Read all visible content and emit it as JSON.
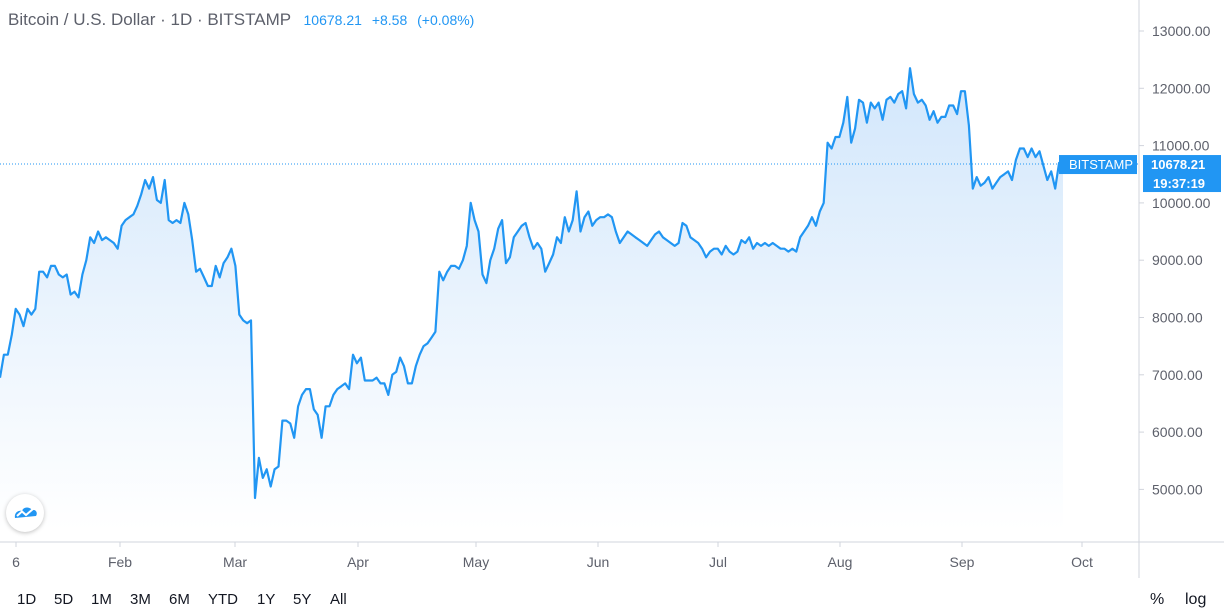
{
  "header": {
    "symbol": "Bitcoin / U.S. Dollar · 1D · BITSTAMP",
    "last": "10678.21",
    "change": "+8.58",
    "change_pct": "(+0.08%)"
  },
  "price_tag": {
    "label": "BITSTAMP",
    "value": "10678.21",
    "countdown": "19:37:19"
  },
  "ranges": [
    "1D",
    "5D",
    "1M",
    "3M",
    "6M",
    "YTD",
    "1Y",
    "5Y",
    "All"
  ],
  "scale_buttons": {
    "percent": "%",
    "log": "log"
  },
  "colors": {
    "line": "#2196f3",
    "fill_top": "#cfe5fb",
    "text": "#131722",
    "axis_text": "#5d606b"
  },
  "chart_data": {
    "type": "area",
    "title": "Bitcoin / U.S. Dollar · 1D · BITSTAMP",
    "x_tick_labels": [
      "6",
      "Feb",
      "Mar",
      "Apr",
      "May",
      "Jun",
      "Jul",
      "Aug",
      "Sep",
      "Oct"
    ],
    "y_tick_labels": [
      "13000.00",
      "12000.00",
      "11000.00",
      "10000.00",
      "9000.00",
      "8000.00",
      "7000.00",
      "6000.00",
      "5000.00"
    ],
    "ylim": [
      4000,
      13600
    ],
    "grid": false,
    "series": [
      {
        "values": [
          6950,
          7350,
          7350,
          7700,
          8150,
          8050,
          7850,
          8150,
          8050,
          8150,
          8800,
          8800,
          8700,
          8900,
          8900,
          8750,
          8700,
          8750,
          8400,
          8450,
          8350,
          8750,
          9000,
          9400,
          9300,
          9500,
          9350,
          9400,
          9350,
          9300,
          9200,
          9600,
          9700,
          9750,
          9800,
          9950,
          10150,
          10400,
          10250,
          10450,
          10050,
          10000,
          10400,
          9700,
          9650,
          9700,
          9650,
          10000,
          9800,
          9350,
          8800,
          8850,
          8700,
          8550,
          8550,
          8900,
          8700,
          8950,
          9050,
          9200,
          8900,
          8050,
          7950,
          7900,
          7950,
          4850,
          5550,
          5200,
          5350,
          5050,
          5350,
          5400,
          6200,
          6200,
          6150,
          5900,
          6450,
          6650,
          6750,
          6750,
          6400,
          6300,
          5900,
          6450,
          6450,
          6650,
          6750,
          6800,
          6850,
          6750,
          7350,
          7200,
          7300,
          6900,
          6900,
          6900,
          6950,
          6850,
          6850,
          6650,
          7000,
          7050,
          7300,
          7150,
          6850,
          6850,
          7150,
          7350,
          7500,
          7550,
          7650,
          7750,
          8800,
          8650,
          8800,
          8900,
          8900,
          8850,
          9000,
          9250,
          10000,
          9700,
          9500,
          8750,
          8600,
          9000,
          9200,
          9550,
          9700,
          8950,
          9050,
          9400,
          9500,
          9600,
          9650,
          9400,
          9200,
          9300,
          9200,
          8800,
          8950,
          9100,
          9400,
          9300,
          9750,
          9500,
          9700,
          10200,
          9500,
          9750,
          9850,
          9600,
          9700,
          9750,
          9750,
          9800,
          9750,
          9500,
          9300,
          9400,
          9500,
          9450,
          9400,
          9350,
          9300,
          9250,
          9350,
          9450,
          9500,
          9400,
          9350,
          9300,
          9250,
          9300,
          9650,
          9600,
          9400,
          9350,
          9300,
          9200,
          9050,
          9150,
          9200,
          9200,
          9100,
          9250,
          9150,
          9100,
          9150,
          9350,
          9300,
          9400,
          9200,
          9300,
          9250,
          9300,
          9250,
          9300,
          9250,
          9200,
          9200,
          9150,
          9200,
          9150,
          9400,
          9500,
          9600,
          9750,
          9600,
          9850,
          10000,
          11050,
          10950,
          11150,
          11150,
          11400,
          11850,
          11050,
          11300,
          11800,
          11750,
          11400,
          11750,
          11650,
          11750,
          11450,
          11800,
          11850,
          11750,
          11900,
          11950,
          11650,
          12350,
          11900,
          11750,
          11800,
          11700,
          11450,
          11600,
          11400,
          11500,
          11500,
          11700,
          11700,
          11550,
          11950,
          11950,
          11350,
          10250,
          10450,
          10300,
          10350,
          10450,
          10250,
          10350,
          10450,
          10500,
          10550,
          10400,
          10750,
          10950,
          10950,
          10800,
          10950,
          10800,
          10900,
          10650,
          10400,
          10550,
          10250,
          10700,
          10678.21
        ]
      }
    ]
  }
}
